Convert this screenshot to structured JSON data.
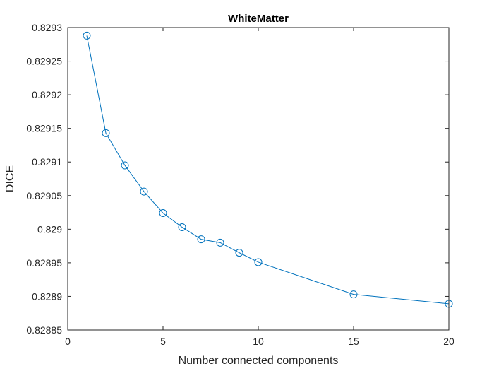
{
  "chart_data": {
    "type": "line",
    "title": "WhiteMatter",
    "xlabel": "Number connected components",
    "ylabel": "DICE",
    "xlim": [
      0,
      20
    ],
    "ylim": [
      0.82885,
      0.8293
    ],
    "xticks": [
      0,
      5,
      10,
      15,
      20
    ],
    "xtick_labels": [
      "0",
      "5",
      "10",
      "15",
      "20"
    ],
    "yticks": [
      0.82885,
      0.8289,
      0.82895,
      0.829,
      0.82905,
      0.8291,
      0.82915,
      0.8292,
      0.82925,
      0.8293
    ],
    "ytick_labels": [
      "0.82885",
      "0.8289",
      "0.82895",
      "0.829",
      "0.82905",
      "0.8291",
      "0.82915",
      "0.8292",
      "0.82925",
      "0.8293"
    ],
    "grid": false,
    "box": true,
    "series": [
      {
        "marker": "circle",
        "color": "#0072BD",
        "x": [
          1,
          2,
          3,
          4,
          5,
          6,
          7,
          8,
          9,
          10,
          15,
          20
        ],
        "y": [
          0.829288,
          0.829143,
          0.829095,
          0.829056,
          0.829024,
          0.829003,
          0.828985,
          0.82898,
          0.828965,
          0.828951,
          0.828903,
          0.828889
        ]
      }
    ]
  }
}
